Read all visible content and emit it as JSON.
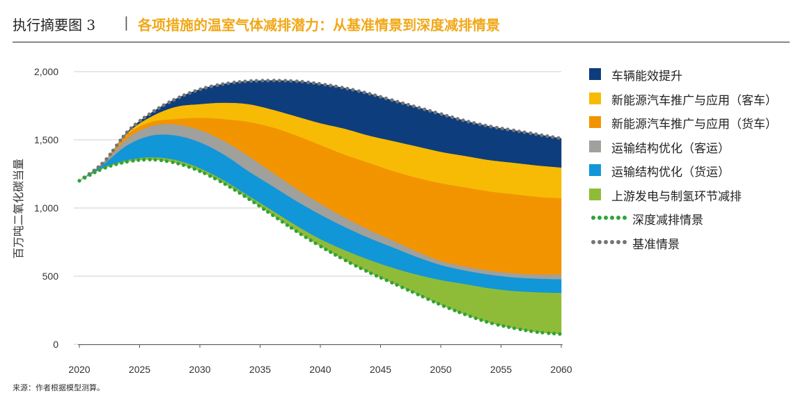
{
  "header": {
    "label": "执行摘要图 3",
    "separator": "|",
    "title": "各项措施的温室气体减排潜力：从基准情景到深度减排情景"
  },
  "source": "来源：作者根据模型测算。",
  "colors": {
    "vehicle_efficiency": "#0d3d7c",
    "ev_passenger": "#f7bb05",
    "ev_freight": "#f29400",
    "modal_passenger": "#a0a09c",
    "modal_freight": "#1196d8",
    "upstream": "#8fbc38",
    "deep_dots": "#2ea33a",
    "baseline_dots": "#757575",
    "grid": "#cfcfcf"
  },
  "chart_data": {
    "type": "area",
    "ylabel": "百万吨二氧化碳当量",
    "ylim": [
      0,
      2000
    ],
    "yticks": [
      0,
      500,
      1000,
      1500,
      2000
    ],
    "ytick_labels": [
      "0",
      "500",
      "1,000",
      "1,500",
      "2,000"
    ],
    "xlim": [
      2020,
      2060
    ],
    "xticks": [
      2020,
      2025,
      2030,
      2035,
      2040,
      2045,
      2050,
      2055,
      2060
    ],
    "xtick_labels": [
      "2020",
      "2025",
      "2030",
      "2035",
      "2040",
      "2045",
      "2050",
      "2055",
      "2060"
    ],
    "grid": true,
    "legend_position": "right",
    "x": [
      2020,
      2022,
      2024,
      2026,
      2028,
      2030,
      2032,
      2034,
      2036,
      2038,
      2040,
      2042,
      2044,
      2046,
      2048,
      2050,
      2052,
      2054,
      2056,
      2058,
      2060
    ],
    "deep_scenario": [
      1200,
      1290,
      1340,
      1355,
      1330,
      1270,
      1180,
      1070,
      950,
      830,
      720,
      620,
      530,
      450,
      370,
      290,
      220,
      160,
      120,
      90,
      75
    ],
    "stack_tops": {
      "upstream": [
        1200,
        1295,
        1350,
        1370,
        1350,
        1290,
        1200,
        1090,
        980,
        870,
        770,
        690,
        620,
        560,
        510,
        470,
        440,
        410,
        390,
        380,
        375
      ],
      "modal_freight": [
        1200,
        1320,
        1460,
        1530,
        1530,
        1480,
        1390,
        1270,
        1160,
        1050,
        950,
        860,
        780,
        710,
        640,
        580,
        540,
        510,
        490,
        480,
        475
      ],
      "modal_passenger": [
        1200,
        1330,
        1510,
        1600,
        1610,
        1570,
        1490,
        1380,
        1260,
        1140,
        1030,
        930,
        840,
        760,
        680,
        610,
        570,
        540,
        520,
        510,
        510
      ],
      "ev_freight": [
        1200,
        1335,
        1540,
        1630,
        1650,
        1660,
        1650,
        1630,
        1590,
        1530,
        1460,
        1390,
        1330,
        1270,
        1220,
        1180,
        1150,
        1120,
        1100,
        1080,
        1070
      ],
      "ev_passenger": [
        1200,
        1335,
        1550,
        1670,
        1740,
        1760,
        1770,
        1760,
        1720,
        1670,
        1620,
        1580,
        1530,
        1490,
        1450,
        1410,
        1380,
        1350,
        1330,
        1310,
        1295
      ],
      "vehicle_efficiency": [
        1200,
        1335,
        1560,
        1700,
        1800,
        1870,
        1910,
        1930,
        1935,
        1930,
        1910,
        1880,
        1840,
        1790,
        1740,
        1690,
        1640,
        1600,
        1570,
        1540,
        1510
      ]
    },
    "baseline_scenario": [
      1200,
      1335,
      1560,
      1700,
      1800,
      1870,
      1910,
      1930,
      1935,
      1930,
      1910,
      1880,
      1840,
      1790,
      1740,
      1690,
      1640,
      1600,
      1570,
      1540,
      1510
    ],
    "series": [
      {
        "key": "vehicle_efficiency",
        "name": "车辆能效提升"
      },
      {
        "key": "ev_passenger",
        "name": "新能源汽车推广与应用（客车）"
      },
      {
        "key": "ev_freight",
        "name": "新能源汽车推广与应用（货车）"
      },
      {
        "key": "modal_passenger",
        "name": "运输结构优化（客运）"
      },
      {
        "key": "modal_freight",
        "name": "运输结构优化（货运）"
      },
      {
        "key": "upstream",
        "name": "上游发电与制氢环节减排"
      },
      {
        "key": "deep_scenario",
        "name": "深度减排情景"
      },
      {
        "key": "baseline_scenario",
        "name": "基准情景"
      }
    ]
  }
}
